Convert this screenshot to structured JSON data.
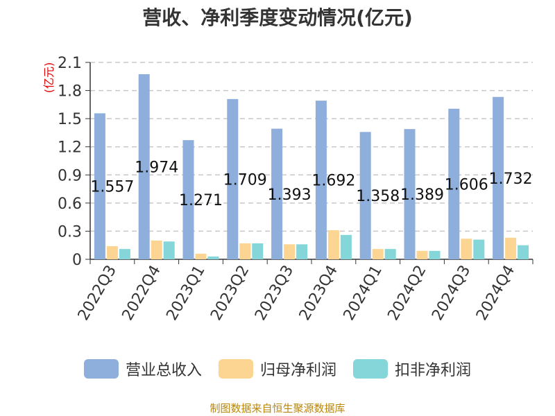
{
  "chart_data": {
    "type": "bar",
    "title": "营收、净利季度变动情况(亿元)",
    "ylabel": "(亿元)",
    "xlabel": "",
    "categories": [
      "2022Q3",
      "2022Q4",
      "2023Q1",
      "2023Q2",
      "2023Q3",
      "2023Q4",
      "2024Q1",
      "2024Q2",
      "2024Q3",
      "2024Q4"
    ],
    "series": [
      {
        "name": "营业总收入",
        "color": "#8eaedb",
        "values": [
          1.557,
          1.974,
          1.271,
          1.709,
          1.393,
          1.692,
          1.358,
          1.389,
          1.606,
          1.732
        ],
        "labels": [
          "1.557",
          "1.974",
          "1.271",
          "1.709",
          "1.393",
          "1.692",
          "1.358",
          "1.389",
          "1.606",
          "1.732"
        ]
      },
      {
        "name": "归母净利润",
        "color": "#fcd592",
        "values": [
          0.14,
          0.2,
          0.06,
          0.17,
          0.16,
          0.31,
          0.11,
          0.09,
          0.22,
          0.23
        ]
      },
      {
        "name": "扣非净利润",
        "color": "#85d6d8",
        "values": [
          0.11,
          0.19,
          0.03,
          0.17,
          0.16,
          0.26,
          0.11,
          0.09,
          0.21,
          0.15
        ]
      }
    ],
    "ylim": [
      0,
      2.1
    ],
    "yticks": [
      "0",
      "0.3",
      "0.6",
      "0.9",
      "1.2",
      "1.5",
      "1.8",
      "2.1"
    ],
    "grid": true,
    "legend_position": "bottom"
  },
  "footer": "制图数据来自恒生聚源数据库"
}
